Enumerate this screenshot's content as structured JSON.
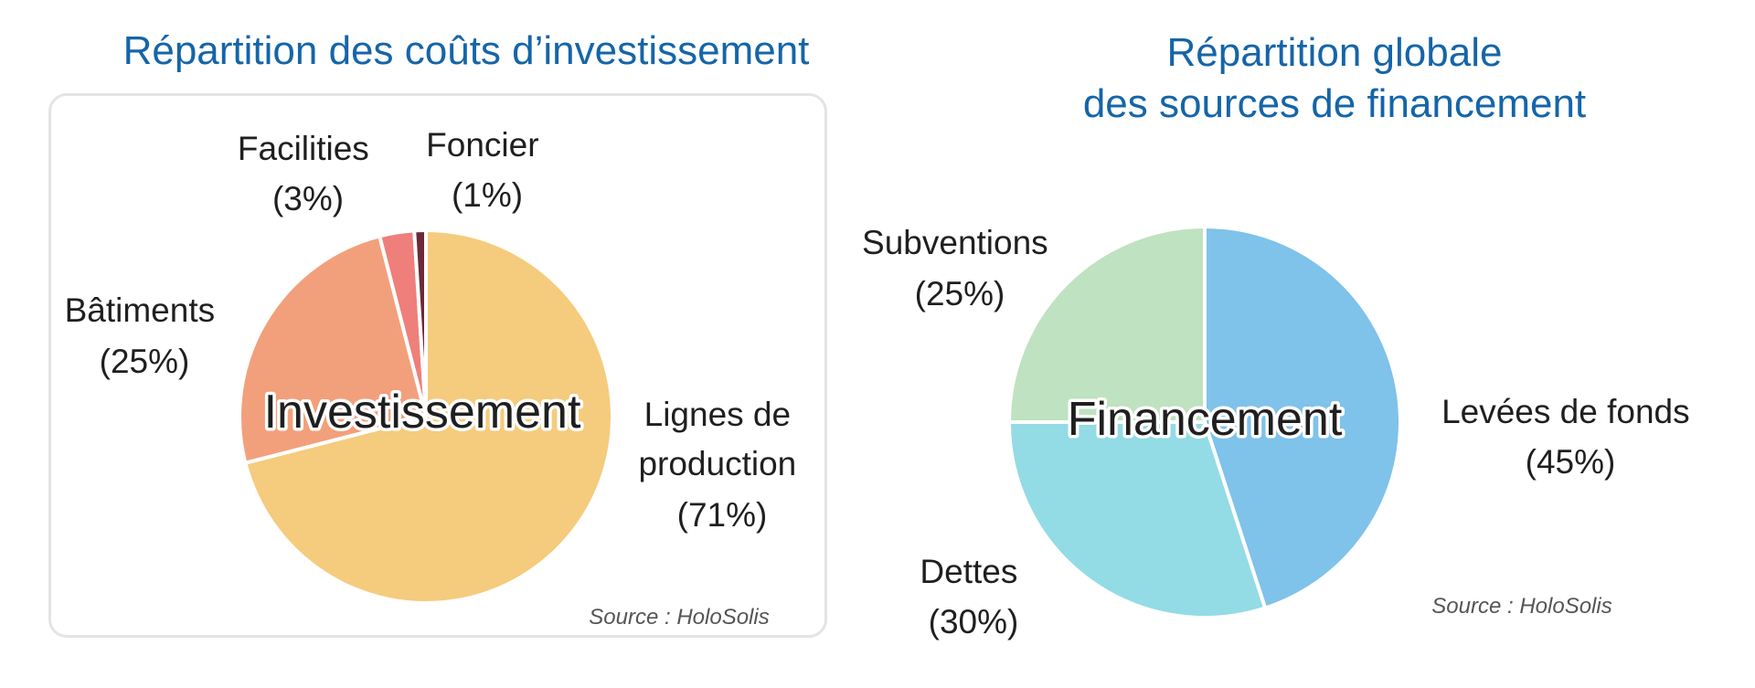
{
  "chart_data": [
    {
      "type": "pie",
      "title": "Répartition des coûts d’investissement",
      "center_label": "Investissement",
      "source": "Source : HoloSolis",
      "slices": [
        {
          "label": "Lignes de production",
          "text_lines": [
            "Lignes de",
            "production",
            "(71%)"
          ],
          "value": 71,
          "color": "#f5cb7d"
        },
        {
          "label": "Bâtiments",
          "text_lines": [
            "Bâtiments",
            "(25%)"
          ],
          "value": 25,
          "color": "#f2a07b"
        },
        {
          "label": "Facilities",
          "text_lines": [
            "Facilities",
            "(3%)"
          ],
          "value": 3,
          "color": "#ef7f7a"
        },
        {
          "label": "Foncier",
          "text_lines": [
            "Foncier",
            "(1%)"
          ],
          "value": 1,
          "color": "#6b2a3a"
        }
      ]
    },
    {
      "type": "pie",
      "title": "Répartition globale des sources de financement",
      "title_lines": [
        "Répartition globale",
        "des sources de financement"
      ],
      "center_label": "Financement",
      "source": "Source : HoloSolis",
      "slices": [
        {
          "label": "Levées de fonds",
          "text_lines": [
            "Levées de fonds",
            "(45%)"
          ],
          "value": 45,
          "color": "#7fc2ea"
        },
        {
          "label": "Dettes",
          "text_lines": [
            "Dettes",
            "(30%)"
          ],
          "value": 30,
          "color": "#93dbe5"
        },
        {
          "label": "Subventions",
          "text_lines": [
            "Subventions",
            "(25%)"
          ],
          "value": 25,
          "color": "#bfe2c0"
        }
      ]
    }
  ]
}
